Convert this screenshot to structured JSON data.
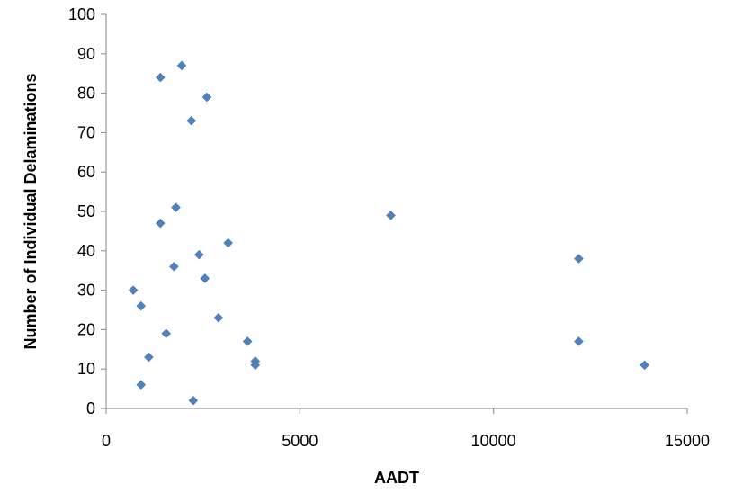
{
  "chart_data": {
    "type": "scatter",
    "title": "",
    "xlabel": "AADT",
    "ylabel": "Number of Individual Delaminations",
    "xlim": [
      0,
      15000
    ],
    "ylim": [
      0,
      100
    ],
    "x_ticks": [
      0,
      5000,
      10000,
      15000
    ],
    "y_ticks": [
      0,
      10,
      20,
      30,
      40,
      50,
      60,
      70,
      80,
      90,
      100
    ],
    "grid": false,
    "legend": "none",
    "marker": "diamond",
    "marker_color": "#4F81BD",
    "series": [
      {
        "points": [
          {
            "x": 700,
            "y": 30
          },
          {
            "x": 900,
            "y": 26
          },
          {
            "x": 900,
            "y": 6
          },
          {
            "x": 1100,
            "y": 13
          },
          {
            "x": 1400,
            "y": 84
          },
          {
            "x": 1400,
            "y": 47
          },
          {
            "x": 1550,
            "y": 19
          },
          {
            "x": 1750,
            "y": 36
          },
          {
            "x": 1800,
            "y": 51
          },
          {
            "x": 1950,
            "y": 87
          },
          {
            "x": 2200,
            "y": 73
          },
          {
            "x": 2250,
            "y": 2
          },
          {
            "x": 2400,
            "y": 39
          },
          {
            "x": 2550,
            "y": 33
          },
          {
            "x": 2600,
            "y": 79
          },
          {
            "x": 2900,
            "y": 23
          },
          {
            "x": 3150,
            "y": 42
          },
          {
            "x": 3650,
            "y": 17
          },
          {
            "x": 3850,
            "y": 12
          },
          {
            "x": 3850,
            "y": 11
          },
          {
            "x": 7350,
            "y": 49
          },
          {
            "x": 12200,
            "y": 38
          },
          {
            "x": 12200,
            "y": 17
          },
          {
            "x": 13900,
            "y": 11
          }
        ]
      }
    ]
  }
}
